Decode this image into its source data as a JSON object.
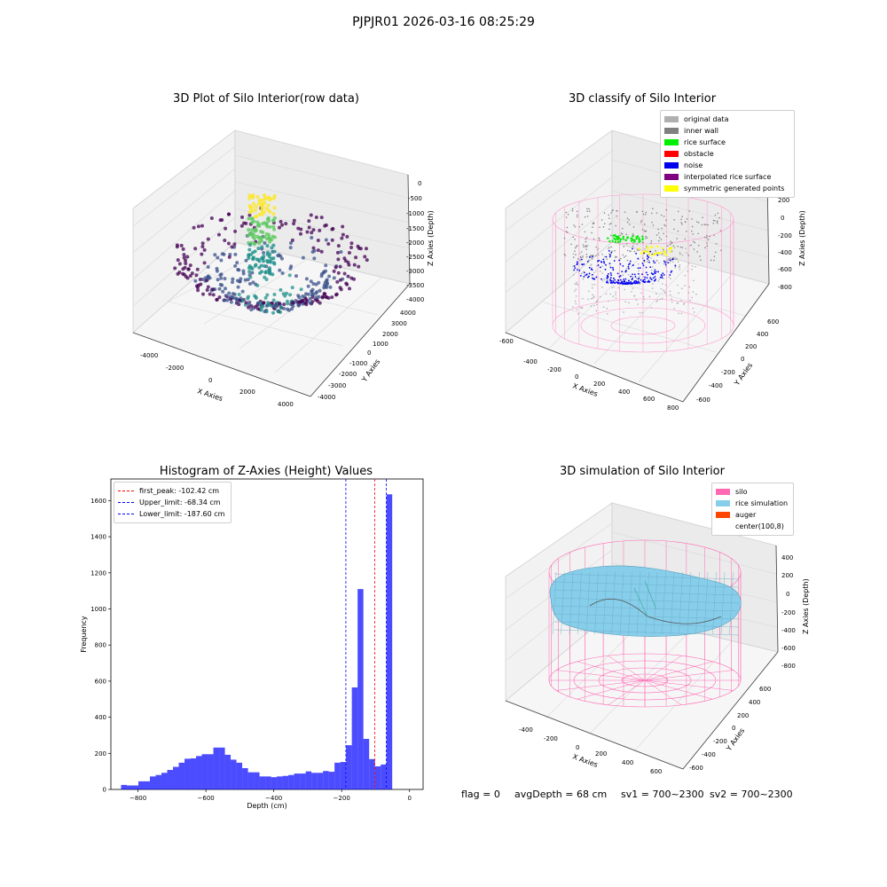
{
  "suptitle": "PJPJR01 2026-03-16 08:25:29",
  "panels": {
    "raw": {
      "title": "3D Plot of Silo Interior(row data)",
      "xlabel": "X Axies",
      "ylabel": "Y Axies",
      "zlabel": "Z Axies (Depth)",
      "xticks": [
        "-4000",
        "-2000",
        "0",
        "2000",
        "4000"
      ],
      "yticks": [
        "-4000",
        "-3000",
        "-2000",
        "-1000",
        "0",
        "1000",
        "2000",
        "3000",
        "4000"
      ],
      "zticks": [
        "0",
        "-500",
        "-1000",
        "-1500",
        "-2000",
        "-2500",
        "-3000",
        "-3500",
        "-4000"
      ]
    },
    "classify": {
      "title": "3D classify of Silo Interior",
      "xlabel": "X Axies",
      "ylabel": "Y Axies",
      "zlabel": "Z Axies (Depth)",
      "xticks": [
        "-600",
        "-400",
        "-200",
        "0",
        "200",
        "400",
        "600",
        "800"
      ],
      "yticks": [
        "-600",
        "-400",
        "-200",
        "0",
        "200",
        "400",
        "600"
      ],
      "zticks": [
        "400",
        "200",
        "0",
        "-200",
        "-400",
        "-600",
        "-800"
      ],
      "legend": [
        {
          "label": "original data",
          "color": "#b0b0b0"
        },
        {
          "label": "inner wall",
          "color": "#808080"
        },
        {
          "label": "rice surface",
          "color": "#00ee00"
        },
        {
          "label": "obstacle",
          "color": "#ff0000"
        },
        {
          "label": "noise",
          "color": "#0000ee"
        },
        {
          "label": "interpolated rice surface",
          "color": "#800080"
        },
        {
          "label": "symmetric generated points",
          "color": "#ffff00"
        }
      ]
    },
    "simulation": {
      "title": "3D simulation of Silo Interior",
      "xlabel": "X Axies",
      "ylabel": "Y Axies",
      "zlabel": "Z Axies (Depth)",
      "xticks": [
        "-400",
        "-200",
        "0",
        "200",
        "400",
        "600"
      ],
      "yticks": [
        "-600",
        "-400",
        "-200",
        "0",
        "200",
        "400",
        "600"
      ],
      "zticks": [
        "400",
        "200",
        "0",
        "-200",
        "-400",
        "-600",
        "-800"
      ],
      "legend": [
        {
          "label": "silo",
          "color": "#ff69b4"
        },
        {
          "label": "rice simulation",
          "color": "#87ceeb"
        },
        {
          "label": "auger",
          "color": "#ff4500"
        },
        {
          "label": "center(100,8)",
          "color": ""
        }
      ]
    }
  },
  "chart_data": [
    {
      "type": "bar",
      "title": "Histogram of Z-Axies (Height) Values",
      "xlabel": "Depth (cm)",
      "ylabel": "Frequency",
      "xlim": [
        -880,
        40
      ],
      "ylim": [
        0,
        1720
      ],
      "xticks": [
        -800,
        -600,
        -400,
        -200,
        0
      ],
      "yticks": [
        0,
        200,
        400,
        600,
        800,
        1000,
        1200,
        1400,
        1600
      ],
      "bar_color": "#0000ff",
      "bin_edges": [
        -850,
        -833,
        -816,
        -799,
        -782,
        -765,
        -748,
        -731,
        -714,
        -697,
        -680,
        -663,
        -646,
        -629,
        -612,
        -595,
        -578,
        -561,
        -544,
        -527,
        -510,
        -493,
        -476,
        -459,
        -442,
        -425,
        -408,
        -391,
        -374,
        -357,
        -340,
        -323,
        -306,
        -289,
        -272,
        -255,
        -238,
        -221,
        -204,
        -187,
        -170,
        -153,
        -136,
        -119,
        -102,
        -85,
        -68,
        -51,
        -34,
        -17,
        0
      ],
      "values": [
        25,
        22,
        22,
        45,
        45,
        72,
        80,
        92,
        108,
        125,
        148,
        170,
        172,
        185,
        195,
        195,
        232,
        232,
        192,
        165,
        148,
        118,
        95,
        95,
        72,
        72,
        68,
        72,
        75,
        80,
        88,
        88,
        100,
        92,
        92,
        102,
        98,
        148,
        152,
        245,
        565,
        1110,
        280,
        168,
        128,
        138,
        1635,
        0,
        0,
        0
      ],
      "vlines": [
        {
          "label": "first_peak: -102.42 cm",
          "x": -102.42,
          "color": "#ff0000"
        },
        {
          "label": "Upper_limit: -68.34 cm",
          "x": -68.34,
          "color": "#0000ff"
        },
        {
          "label": "Lower_limit: -187.60 cm",
          "x": -187.6,
          "color": "#0000ff"
        }
      ],
      "legend_placement": "top-left"
    }
  ],
  "footer": {
    "flag": "flag = 0",
    "avg": "avgDepth = 68 cm",
    "sv1": "sv1 = 700~2300",
    "sv2": "sv2 = 700~2300"
  }
}
